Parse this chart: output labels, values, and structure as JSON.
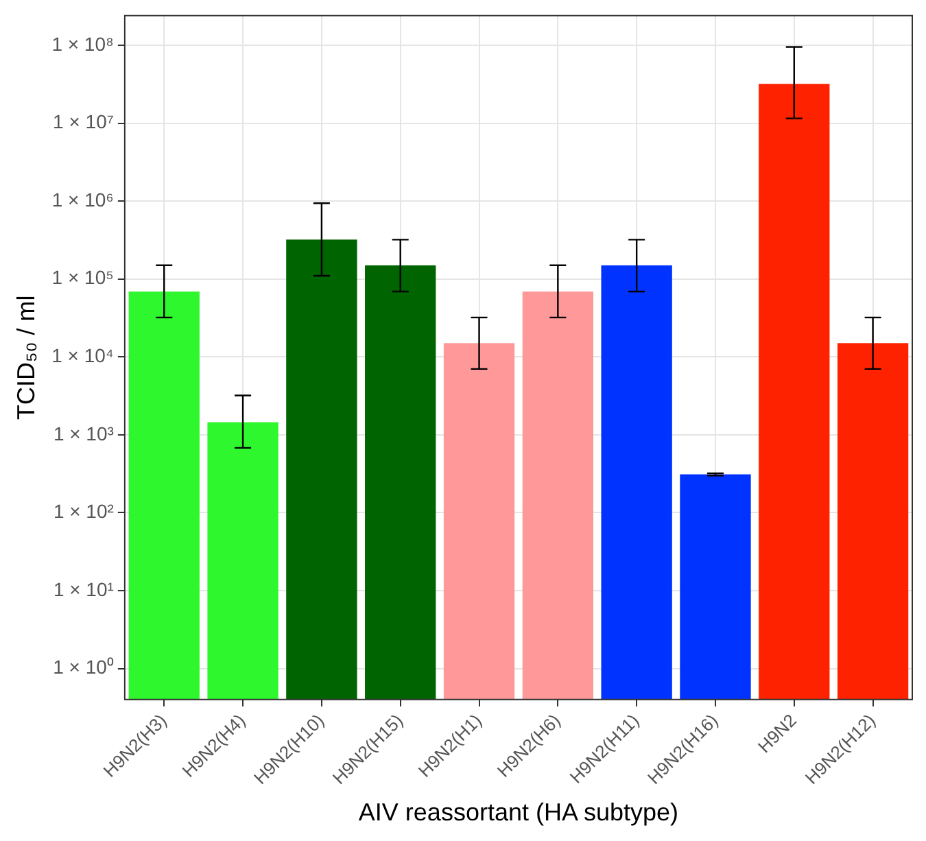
{
  "chart_data": {
    "type": "bar",
    "xlabel": "AIV reassortant (HA subtype)",
    "ylabel": "TCID₅₀ / ml",
    "categories": [
      "H9N2(H3)",
      "H9N2(H4)",
      "H9N2(H10)",
      "H9N2(H15)",
      "H9N2(H1)",
      "H9N2(H6)",
      "H9N2(H11)",
      "H9N2(H16)",
      "H9N2",
      "H9N2(H12)"
    ],
    "values": [
      69000,
      1450,
      320000,
      150000,
      15000,
      69000,
      150000,
      310,
      32000000,
      15000
    ],
    "colors": [
      "#2ef72e",
      "#2ef72e",
      "#006400",
      "#006400",
      "#ff9999",
      "#ff9999",
      "#0033ff",
      "#0033ff",
      "#ff2200",
      "#ff2200"
    ],
    "errors": [
      [
        32000,
        150000
      ],
      [
        680,
        3200
      ],
      [
        110000,
        940000
      ],
      [
        69000,
        320000
      ],
      [
        7000,
        32000
      ],
      [
        32000,
        150000
      ],
      [
        69000,
        320000
      ],
      [
        300,
        320
      ],
      [
        11500000,
        95000000
      ],
      [
        7000,
        32000
      ]
    ],
    "log": true,
    "ylim": [
      0.4,
      240000000
    ],
    "yticks": [
      {
        "value": 1,
        "label": "1 × 10⁰"
      },
      {
        "value": 10,
        "label": "1 × 10¹"
      },
      {
        "value": 100,
        "label": "1 × 10²"
      },
      {
        "value": 1000,
        "label": "1 × 10³"
      },
      {
        "value": 10000,
        "label": "1 × 10⁴"
      },
      {
        "value": 100000,
        "label": "1 × 10⁵"
      },
      {
        "value": 1000000,
        "label": "1 × 10⁶"
      },
      {
        "value": 10000000,
        "label": "1 × 10⁷"
      },
      {
        "value": 100000000,
        "label": "1 × 10⁸"
      }
    ],
    "grid": true,
    "legend": false
  }
}
